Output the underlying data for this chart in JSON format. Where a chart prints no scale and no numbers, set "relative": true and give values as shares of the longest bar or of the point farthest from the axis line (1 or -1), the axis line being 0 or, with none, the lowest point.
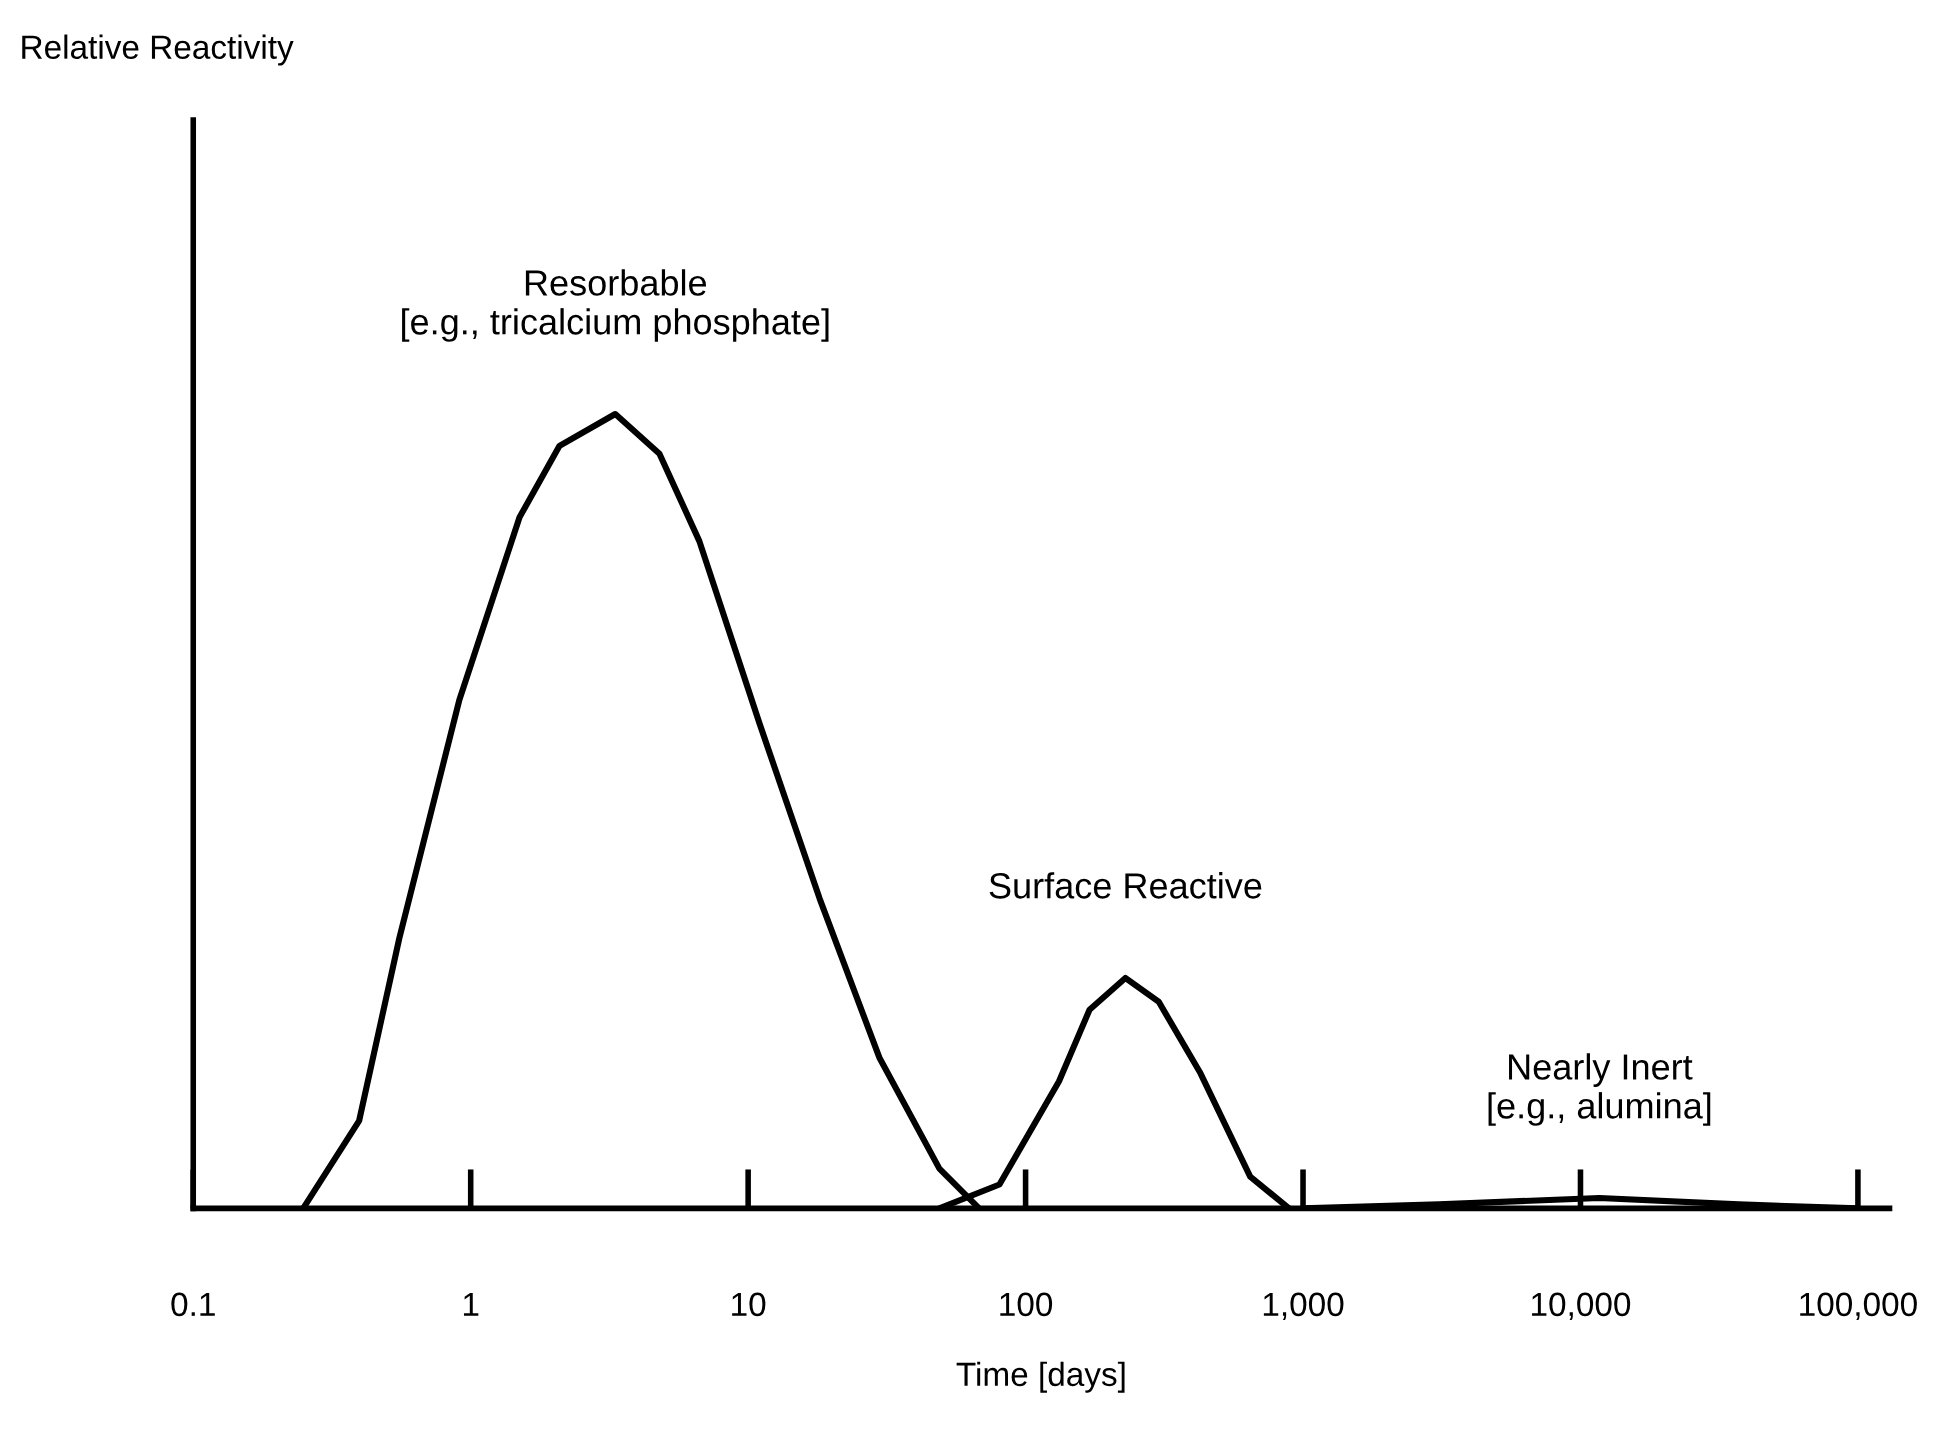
{
  "chart_data": {
    "type": "line",
    "relative": true,
    "log": "x",
    "xlabel": "Time [days]",
    "xlim": [
      0.1,
      130000
    ],
    "xticks": [
      0.1,
      1,
      10,
      100,
      {
        "value": 1000,
        "label": "1,000"
      },
      {
        "value": 10000,
        "label": "10,000"
      },
      {
        "value": 100000,
        "label": "100,000"
      }
    ],
    "grid": false,
    "marker": "none",
    "line_style": "solid",
    "series": [
      {
        "color": "#000000",
        "x": [
          0.249,
          0.396,
          0.553,
          0.91,
          1.5,
          2.09,
          3.32,
          4.79,
          6.67,
          11.0,
          18.1,
          29.7,
          48.9,
          68
        ],
        "values": [
          0,
          0.11,
          0.34,
          0.64,
          0.87,
          0.96,
          1.0,
          0.95,
          0.84,
          0.61,
          0.39,
          0.19,
          0.05,
          0
        ]
      },
      {
        "color": "#000000",
        "x": [
          48.9,
          80.5,
          132,
          170,
          229,
          302,
          427,
          645,
          890
        ],
        "values": [
          0,
          0.03,
          0.16,
          0.25,
          0.29,
          0.26,
          0.17,
          0.04,
          0
        ]
      },
      {
        "color": "#000000",
        "x": [
          1000,
          3090,
          11700,
          37200,
          100000
        ],
        "values": [
          0,
          0.005,
          0.013,
          0.005,
          0
        ]
      }
    ],
    "annotations": [
      "Resorbable\n[e.g., tricalcium phosphate]",
      "Surface Reactive",
      "Nearly Inert\n[e.g., alumina]",
      "Relative Reactivity"
    ]
  }
}
